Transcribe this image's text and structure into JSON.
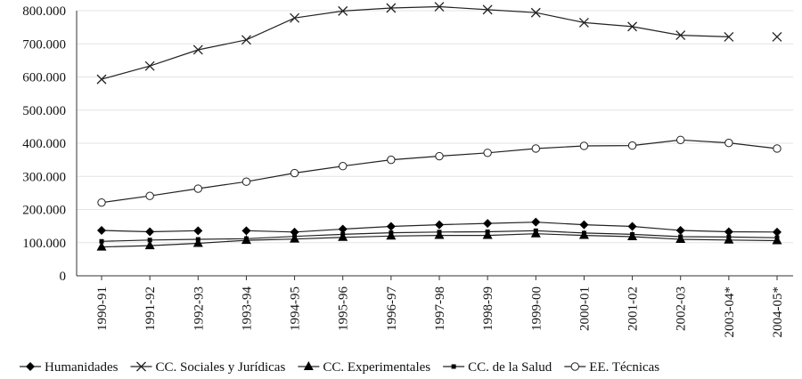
{
  "chart_data": {
    "type": "line",
    "title": "",
    "xlabel": "",
    "ylabel": "",
    "ylim": [
      0,
      800000
    ],
    "yticks": [
      0,
      100000,
      200000,
      300000,
      400000,
      500000,
      600000,
      700000,
      800000
    ],
    "ytick_labels": [
      "0",
      "100.000",
      "200.000",
      "300.000",
      "400.000",
      "500.000",
      "600.000",
      "700.000",
      "800.000"
    ],
    "grid": true,
    "legend_position": "bottom",
    "categories": [
      "1990-91",
      "1991-92",
      "1992-93",
      "1993-94",
      "1994-95",
      "1995-96",
      "1996-97",
      "1997-98",
      "1998-99",
      "1999-00",
      "2000-01",
      "2001-02",
      "2002-03",
      "2003-04*",
      "2004-05*"
    ],
    "series": [
      {
        "name": "Humanidades",
        "marker": "diamond",
        "values": [
          137000,
          133000,
          136000,
          136000,
          132000,
          141000,
          149000,
          154000,
          158000,
          162000,
          154000,
          149000,
          137000,
          133000,
          132000
        ],
        "gaps_after": [
          2
        ]
      },
      {
        "name": "CC. Sociales y Jurídicas",
        "marker": "x",
        "values": [
          593000,
          633000,
          682000,
          712000,
          778000,
          799000,
          808000,
          812000,
          803000,
          794000,
          764000,
          752000,
          726000,
          721000,
          721000
        ],
        "gaps_after": [
          13
        ]
      },
      {
        "name": "CC. Experimentales",
        "marker": "triangle",
        "values": [
          87000,
          91000,
          98000,
          107000,
          111000,
          116000,
          120000,
          122000,
          122000,
          127000,
          122000,
          118000,
          110000,
          108000,
          106000
        ],
        "gaps_after": []
      },
      {
        "name": "CC. de la Salud",
        "marker": "square",
        "values": [
          104000,
          108000,
          110000,
          112000,
          119000,
          125000,
          130000,
          132000,
          133000,
          136000,
          129000,
          125000,
          118000,
          117000,
          115000
        ],
        "gaps_after": []
      },
      {
        "name": "EE. Técnicas",
        "marker": "circle",
        "values": [
          221000,
          241000,
          263000,
          284000,
          310000,
          331000,
          350000,
          361000,
          371000,
          384000,
          392000,
          393000,
          410000,
          401000,
          384000
        ],
        "gaps_after": []
      }
    ]
  }
}
